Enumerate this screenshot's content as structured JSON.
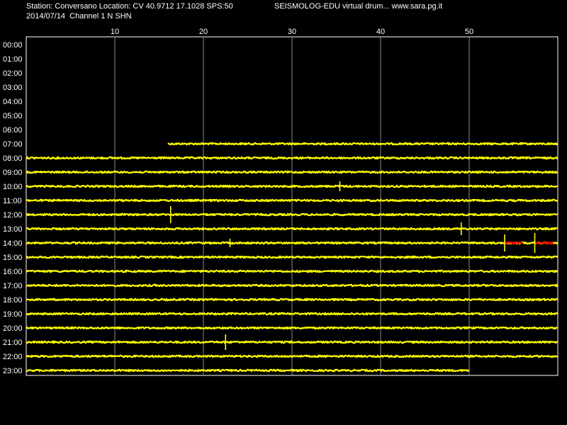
{
  "header": {
    "station_line": "Station: Conversano Location: CV 40.9712 17.1028 SPS:50",
    "date_line": "2014/07/14  Channel 1 N SHN",
    "program_line": "SEISMOLOG-EDU virtual drum... www.sara.pg.it"
  },
  "chart_data": {
    "type": "line",
    "title": "",
    "xlabel": "",
    "ylabel": "",
    "x_unit": "minutes",
    "xlim": [
      0,
      60
    ],
    "x_ticks": [
      "10",
      "20",
      "30",
      "40",
      "50"
    ],
    "x_tick_values": [
      10,
      20,
      30,
      40,
      50
    ],
    "grid": true,
    "trace_color": "#ffff00",
    "event_color": "#ff0000",
    "background_color": "#000000",
    "hours": [
      "00:00",
      "01:00",
      "02:00",
      "03:00",
      "04:00",
      "05:00",
      "06:00",
      "07:00",
      "08:00",
      "09:00",
      "10:00",
      "11:00",
      "12:00",
      "13:00",
      "14:00",
      "15:00",
      "16:00",
      "17:00",
      "18:00",
      "19:00",
      "20:00",
      "21:00",
      "22:00",
      "23:00"
    ],
    "traces": [
      {
        "hour": "07:00",
        "start": 16,
        "end": 60
      },
      {
        "hour": "08:00",
        "start": 0,
        "end": 60
      },
      {
        "hour": "09:00",
        "start": 0,
        "end": 60
      },
      {
        "hour": "10:00",
        "start": 0,
        "end": 60
      },
      {
        "hour": "11:00",
        "start": 0,
        "end": 60
      },
      {
        "hour": "12:00",
        "start": 0,
        "end": 60
      },
      {
        "hour": "13:00",
        "start": 0,
        "end": 60
      },
      {
        "hour": "14:00",
        "start": 0,
        "end": 60
      },
      {
        "hour": "15:00",
        "start": 0,
        "end": 60
      },
      {
        "hour": "16:00",
        "start": 0,
        "end": 60
      },
      {
        "hour": "17:00",
        "start": 0,
        "end": 60
      },
      {
        "hour": "18:00",
        "start": 0,
        "end": 60
      },
      {
        "hour": "19:00",
        "start": 0,
        "end": 60
      },
      {
        "hour": "20:00",
        "start": 0,
        "end": 60
      },
      {
        "hour": "21:00",
        "start": 0,
        "end": 60
      },
      {
        "hour": "22:00",
        "start": 0,
        "end": 60
      },
      {
        "hour": "23:00",
        "start": 0,
        "end": 50
      }
    ],
    "spikes": [
      {
        "hour": "10:00",
        "minute": 35.4,
        "amplitude": 7
      },
      {
        "hour": "12:00",
        "minute": 16.3,
        "amplitude": 12
      },
      {
        "hour": "13:00",
        "minute": 49.1,
        "amplitude": 9
      },
      {
        "hour": "14:00",
        "minute": 23.0,
        "amplitude": 6
      },
      {
        "hour": "14:00",
        "minute": 54.0,
        "amplitude": 12
      },
      {
        "hour": "14:00",
        "minute": 57.4,
        "amplitude": 14
      },
      {
        "hour": "21:00",
        "minute": 22.5,
        "amplitude": 11
      }
    ],
    "events": [
      {
        "hour": "14:00",
        "start": 54.0,
        "end": 56.0
      },
      {
        "hour": "14:00",
        "start": 57.4,
        "end": 59.5
      }
    ]
  }
}
